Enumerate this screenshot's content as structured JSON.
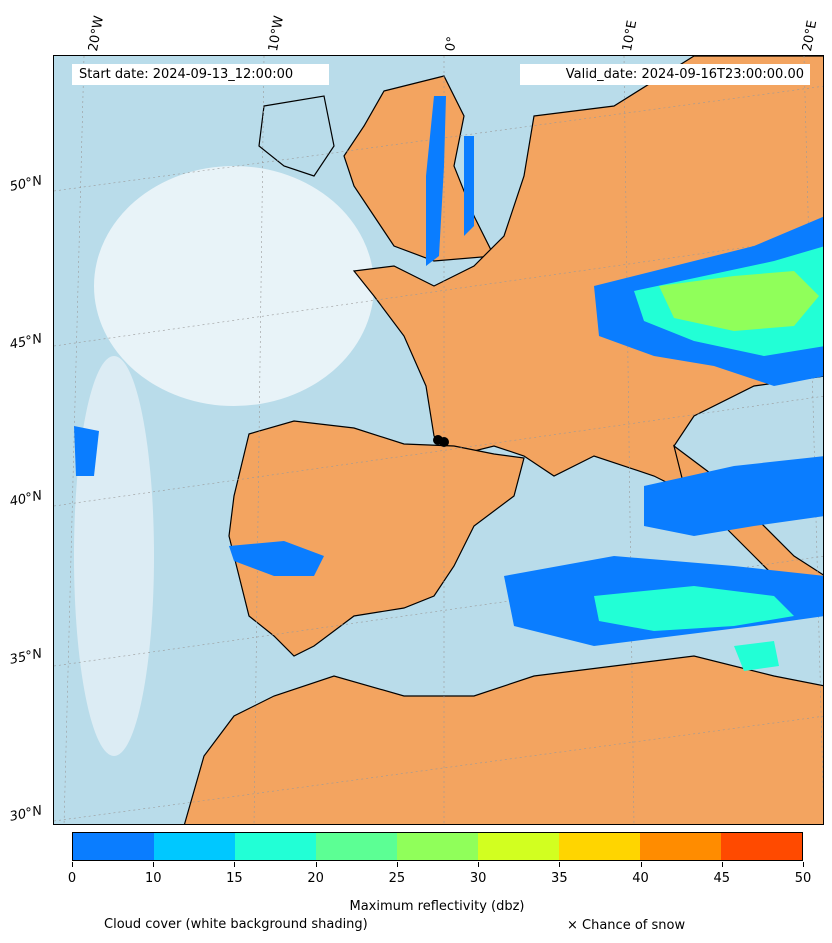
{
  "header": {
    "start_date": "Start date: 2024-09-13_12:00:00",
    "valid_date": "Valid_date: 2024-09-16T23:00:00.00"
  },
  "map": {
    "region": "Western Europe / North Africa",
    "longitude_labels": [
      "20°W",
      "10°W",
      "0°",
      "10°E",
      "20°E"
    ],
    "latitude_labels": [
      "50°N",
      "45°N",
      "40°N",
      "35°N",
      "30°N"
    ],
    "colors": {
      "ocean_cloud": "#b9dcea",
      "land": "#f3a460",
      "coastline": "#000000",
      "gridline": "#9a9a9a"
    }
  },
  "legend": {
    "title": "Maximum reflectivity (dbz)",
    "ticks": [
      "0",
      "10",
      "15",
      "20",
      "25",
      "30",
      "35",
      "40",
      "45",
      "50"
    ],
    "colors": [
      "#0a7dff",
      "#00c8ff",
      "#22ffd6",
      "#5cff94",
      "#90ff5a",
      "#d2ff20",
      "#ffd500",
      "#ff8c00",
      "#ff4a00"
    ],
    "cloud_note": "Cloud cover (white background shading)",
    "snow_note": "× Chance of snow"
  }
}
